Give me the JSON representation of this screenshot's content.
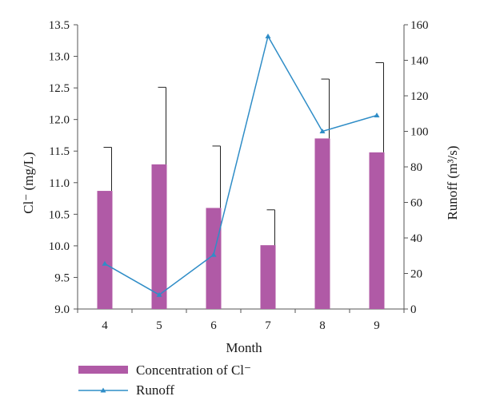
{
  "chart_data": {
    "type": "bar",
    "categories": [
      "4",
      "5",
      "6",
      "7",
      "8",
      "9"
    ],
    "xlabel": "Month",
    "series": [
      {
        "name": "Concentration of Cl⁻",
        "kind": "bar",
        "axis": "left",
        "color": "#b05aa6",
        "values": [
          10.87,
          11.29,
          10.6,
          10.01,
          11.7,
          11.48
        ],
        "error_upper": [
          11.56,
          12.51,
          11.58,
          10.57,
          12.64,
          12.9
        ]
      },
      {
        "name": "Runoff",
        "kind": "line",
        "axis": "right",
        "color": "#2f8dc7",
        "marker": "triangle",
        "values": [
          25.5,
          8.0,
          30.5,
          153.5,
          100.0,
          109.0
        ]
      }
    ],
    "y_left": {
      "label": "Cl⁻ (mg/L)",
      "ylim": [
        9.0,
        13.5
      ],
      "ticks": [
        "9.0",
        "9.5",
        "10.0",
        "10.5",
        "11.0",
        "11.5",
        "12.0",
        "12.5",
        "13.0",
        "13.5"
      ]
    },
    "y_right": {
      "label": "Runoff (m³/s)",
      "ylim": [
        0,
        160
      ],
      "ticks": [
        "0",
        "20",
        "40",
        "60",
        "80",
        "100",
        "120",
        "140",
        "160"
      ]
    },
    "grid": false,
    "legend_position": "bottom-left"
  }
}
